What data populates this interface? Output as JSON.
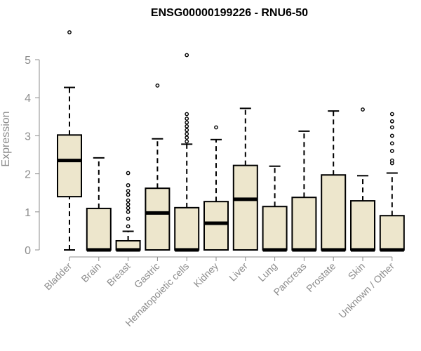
{
  "chart_data": {
    "type": "boxplot",
    "title": "ENSG00000199226 - RNU6-50",
    "ylabel": "Expression",
    "xlabel": "",
    "ylim": [
      0,
      5.8
    ],
    "yticks": [
      0,
      1,
      2,
      3,
      4,
      5
    ],
    "box_fill": "#ede6cc",
    "categories": [
      "Bladder",
      "Brain",
      "Breast",
      "Gastric",
      "Hematopoietic cells",
      "Kidney",
      "Liver",
      "Lung",
      "Pancreas",
      "Prostate",
      "Skin",
      "Unknown / Other"
    ],
    "boxes": [
      {
        "name": "Bladder",
        "whisker_low": 0,
        "q1": 1.4,
        "median": 2.35,
        "q3": 3.02,
        "whisker_high": 4.27,
        "outliers": [
          5.72
        ]
      },
      {
        "name": "Brain",
        "whisker_low": 0,
        "q1": 0,
        "median": 0,
        "q3": 1.09,
        "whisker_high": 2.42,
        "outliers": []
      },
      {
        "name": "Breast",
        "whisker_low": 0,
        "q1": 0,
        "median": 0,
        "q3": 0.24,
        "whisker_high": 0.49,
        "outliers": [
          0.62,
          0.82,
          1.0,
          1.1,
          1.2,
          1.3,
          1.45,
          1.55,
          1.7,
          2.02
        ]
      },
      {
        "name": "Gastric",
        "whisker_low": 0,
        "q1": 0,
        "median": 0.97,
        "q3": 1.62,
        "whisker_high": 2.92,
        "outliers": [
          4.32
        ]
      },
      {
        "name": "Hematopoietic cells",
        "whisker_low": 0,
        "q1": 0,
        "median": 0,
        "q3": 1.11,
        "whisker_high": 2.78,
        "outliers": [
          2.85,
          2.95,
          3.05,
          3.15,
          3.25,
          3.35,
          3.45,
          3.57,
          5.12
        ]
      },
      {
        "name": "Kidney",
        "whisker_low": 0,
        "q1": 0,
        "median": 0.7,
        "q3": 1.27,
        "whisker_high": 2.9,
        "outliers": [
          3.22
        ]
      },
      {
        "name": "Liver",
        "whisker_low": 0,
        "q1": 0,
        "median": 1.33,
        "q3": 2.22,
        "whisker_high": 3.72,
        "outliers": []
      },
      {
        "name": "Lung",
        "whisker_low": 0,
        "q1": 0,
        "median": 0,
        "q3": 1.14,
        "whisker_high": 2.2,
        "outliers": []
      },
      {
        "name": "Pancreas",
        "whisker_low": 0,
        "q1": 0,
        "median": 0,
        "q3": 1.38,
        "whisker_high": 3.12,
        "outliers": []
      },
      {
        "name": "Prostate",
        "whisker_low": 0,
        "q1": 0,
        "median": 0,
        "q3": 1.97,
        "whisker_high": 3.65,
        "outliers": []
      },
      {
        "name": "Skin",
        "whisker_low": 0,
        "q1": 0,
        "median": 0,
        "q3": 1.29,
        "whisker_high": 1.95,
        "outliers": [
          3.69
        ]
      },
      {
        "name": "Unknown / Other",
        "whisker_low": 0,
        "q1": 0,
        "median": 0,
        "q3": 0.9,
        "whisker_high": 2.02,
        "outliers": [
          2.28,
          2.35,
          2.6,
          2.8,
          3.0,
          3.22,
          3.38,
          3.57
        ]
      }
    ]
  }
}
